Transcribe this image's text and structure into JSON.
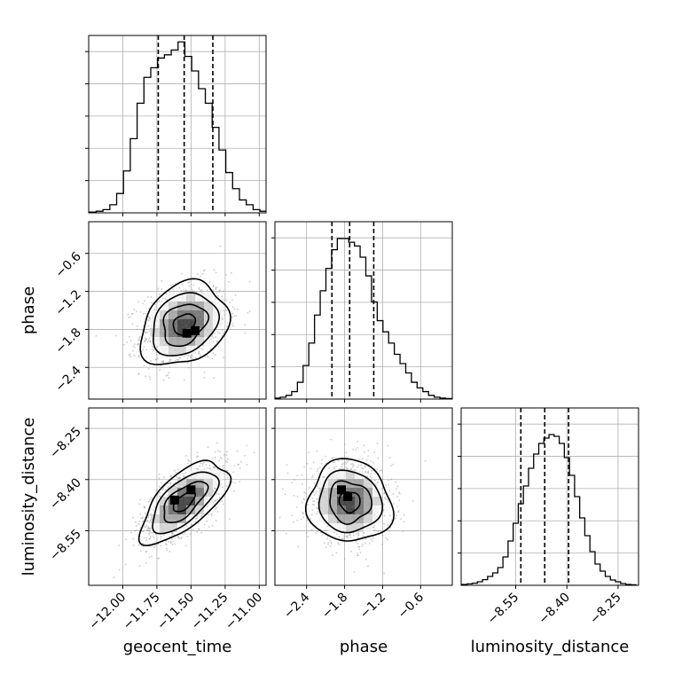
{
  "chart_data": {
    "type": "corner",
    "parameters": [
      {
        "name": "geocent_time",
        "label": "geocent_time",
        "range": [
          -12.25,
          -10.95
        ],
        "ticks": [
          -12.0,
          -11.75,
          -11.5,
          -11.25,
          -11.0
        ],
        "tick_labels": [
          "−12.00",
          "−11.75",
          "−11.50",
          "−11.25",
          "−11.00"
        ],
        "quantiles": [
          -11.74,
          -11.55,
          -11.34
        ]
      },
      {
        "name": "phase",
        "label": "phase",
        "range": [
          -2.9,
          -0.1
        ],
        "ticks": [
          -2.4,
          -1.8,
          -1.2,
          -0.6
        ],
        "tick_labels": [
          "−2.4",
          "−1.8",
          "−1.2",
          "−0.6"
        ],
        "quantiles": [
          -2.0,
          -1.72,
          -1.34
        ]
      },
      {
        "name": "luminosity_distance",
        "label": "luminosity_distance",
        "range": [
          -8.71,
          -8.19
        ],
        "ticks": [
          -8.55,
          -8.4,
          -8.25
        ],
        "tick_labels": [
          "−8.55",
          "−8.40",
          "−8.25"
        ],
        "quantiles": [
          -8.535,
          -8.465,
          -8.395
        ]
      }
    ],
    "histograms": {
      "geocent_time": {
        "bin_centers": [
          -12.22,
          -12.17,
          -12.12,
          -12.07,
          -12.02,
          -11.97,
          -11.92,
          -11.87,
          -11.82,
          -11.77,
          -11.72,
          -11.67,
          -11.62,
          -11.57,
          -11.52,
          -11.47,
          -11.42,
          -11.37,
          -11.32,
          -11.27,
          -11.22,
          -11.17,
          -11.12,
          -11.07,
          -11.02,
          -10.97
        ],
        "counts": [
          0.5,
          1,
          2,
          5,
          12,
          26,
          46,
          68,
          84,
          90,
          96,
          98,
          101,
          106,
          97,
          88,
          77,
          68,
          53,
          39,
          25,
          15,
          8,
          5,
          2,
          1
        ],
        "ymax": 110
      },
      "phase": {
        "bin_centers": [
          -2.86,
          -2.77,
          -2.68,
          -2.59,
          -2.5,
          -2.41,
          -2.32,
          -2.23,
          -2.14,
          -2.05,
          -1.96,
          -1.87,
          -1.78,
          -1.69,
          -1.6,
          -1.51,
          -1.42,
          -1.33,
          -1.24,
          -1.15,
          -1.06,
          -0.97,
          -0.88,
          -0.79,
          -0.7,
          -0.61,
          -0.52,
          -0.43,
          -0.34,
          -0.25,
          -0.16
        ],
        "counts": [
          0.5,
          1,
          2,
          4,
          9,
          18,
          30,
          45,
          58,
          70,
          80,
          86,
          86,
          84,
          82,
          76,
          66,
          52,
          42,
          36,
          30,
          24,
          19,
          14,
          9,
          6,
          4,
          2,
          1,
          0.5,
          0.3
        ],
        "ymax": 95
      },
      "luminosity_distance": {
        "bin_centers": [
          -8.7,
          -8.685,
          -8.67,
          -8.655,
          -8.64,
          -8.625,
          -8.61,
          -8.595,
          -8.58,
          -8.565,
          -8.55,
          -8.535,
          -8.52,
          -8.505,
          -8.49,
          -8.475,
          -8.46,
          -8.445,
          -8.43,
          -8.415,
          -8.4,
          -8.385,
          -8.37,
          -8.355,
          -8.34,
          -8.325,
          -8.31,
          -8.295,
          -8.28,
          -8.265,
          -8.25,
          -8.235,
          -8.22,
          -8.205
        ],
        "counts": [
          0.5,
          0.8,
          1.2,
          2,
          3.2,
          5,
          7,
          10,
          16,
          25,
          35,
          46,
          56,
          66,
          74,
          80,
          83,
          85,
          84,
          80,
          72,
          62,
          50,
          38,
          28,
          19,
          12,
          8,
          5,
          3,
          2,
          1,
          0.5,
          0.3
        ],
        "ymax": 100
      }
    },
    "pairs": [
      {
        "x": "geocent_time",
        "y": "phase",
        "mean": [
          -11.55,
          -1.72
        ],
        "std": [
          0.16,
          0.33
        ],
        "corr": 0.25,
        "mode": [
          -11.47,
          -1.82
        ],
        "mode_secondary": [
          -11.53,
          -1.86
        ],
        "contour_levels": [
          "0.5",
          "1.0",
          "1.5",
          "2.0"
        ]
      },
      {
        "x": "geocent_time",
        "y": "luminosity_distance",
        "mean": [
          -11.55,
          -8.465
        ],
        "std": [
          0.16,
          0.06
        ],
        "corr": 0.65,
        "mode": [
          -11.62,
          -8.46
        ],
        "mode_secondary": [
          -11.5,
          -8.43
        ],
        "contour_levels": [
          "0.5",
          "1.0",
          "1.5",
          "2.0"
        ]
      },
      {
        "x": "phase",
        "y": "luminosity_distance",
        "mean": [
          -1.72,
          -8.465
        ],
        "std": [
          0.33,
          0.06
        ],
        "corr": -0.05,
        "mode": [
          -1.85,
          -8.43
        ],
        "mode_secondary": [
          -1.75,
          -8.45
        ],
        "contour_levels": [
          "0.5",
          "1.0",
          "1.5",
          "2.0"
        ]
      }
    ],
    "grid": true,
    "quantiles_shown": [
      0.16,
      0.5,
      0.84
    ],
    "colors": {
      "line": "#000000",
      "grid": "#b0b0b0",
      "scatter": "#9e9e9e",
      "hist2d": [
        "#f5f5f5",
        "#d0d0d0",
        "#a0a0a0",
        "#6a6a6a",
        "#333333",
        "#000000"
      ]
    }
  }
}
